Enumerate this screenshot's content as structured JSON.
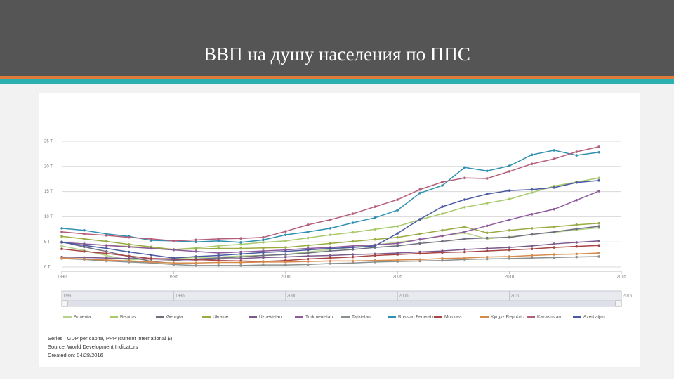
{
  "title": "ВВП на душу населения по ППС",
  "chart_data": {
    "type": "line",
    "x": [
      1990,
      1991,
      1992,
      1993,
      1994,
      1995,
      1996,
      1997,
      1998,
      1999,
      2000,
      2001,
      2002,
      2003,
      2004,
      2005,
      2006,
      2007,
      2008,
      2009,
      2010,
      2011,
      2012,
      2013,
      2014
    ],
    "xlim": [
      1990,
      2015
    ],
    "xticks": [
      1990,
      1995,
      2000,
      2005,
      2010,
      2015
    ],
    "ylim": [
      0,
      25
    ],
    "yticks": [
      {
        "value": 0,
        "label": "0 T"
      },
      {
        "value": 5,
        "label": "5 T"
      },
      {
        "value": 10,
        "label": "10 T"
      },
      {
        "value": 15,
        "label": "15 T"
      },
      {
        "value": 20,
        "label": "20 T"
      },
      {
        "value": 25,
        "label": "25 T"
      }
    ],
    "grid": true,
    "series": [
      {
        "name": "Armenia",
        "color": "#b5d38a",
        "values": [
          4.2,
          3.3,
          2.3,
          1.4,
          1.6,
          1.7,
          1.9,
          2.0,
          2.2,
          2.3,
          2.5,
          3.0,
          3.5,
          3.9,
          4.4,
          4.9,
          5.5,
          6.2,
          6.8,
          5.6,
          6.0,
          6.5,
          6.9,
          7.4,
          7.8
        ]
      },
      {
        "name": "Belarus",
        "color": "#a9c96b",
        "values": [
          4.9,
          4.6,
          4.3,
          4.1,
          3.8,
          3.5,
          3.8,
          4.2,
          4.5,
          4.9,
          5.2,
          5.8,
          6.4,
          6.9,
          7.5,
          8.1,
          9.4,
          10.6,
          11.9,
          12.7,
          13.5,
          14.8,
          16.1,
          16.9,
          17.7
        ]
      },
      {
        "name": "Georgia",
        "color": "#6f6f80",
        "values": [
          5.0,
          4.0,
          3.1,
          2.1,
          1.1,
          1.3,
          1.6,
          1.8,
          2.0,
          2.3,
          2.5,
          2.8,
          3.2,
          3.5,
          3.9,
          4.2,
          4.7,
          5.1,
          5.6,
          5.8,
          5.9,
          6.5,
          7.0,
          7.6,
          8.1
        ]
      },
      {
        "name": "Ukraine",
        "color": "#9aab42",
        "values": [
          6.1,
          5.6,
          5.1,
          4.5,
          4.0,
          3.5,
          3.6,
          3.7,
          3.7,
          3.8,
          3.9,
          4.3,
          4.7,
          5.1,
          5.5,
          5.9,
          6.6,
          7.3,
          8.0,
          6.8,
          7.3,
          7.7,
          8.0,
          8.4,
          8.7
        ]
      },
      {
        "name": "Uzbekistan",
        "color": "#7b5a8c",
        "values": [
          2.0,
          1.9,
          1.8,
          1.7,
          1.6,
          1.5,
          1.4,
          1.6,
          1.7,
          1.9,
          2.0,
          2.2,
          2.3,
          2.5,
          2.6,
          2.8,
          3.0,
          3.2,
          3.5,
          3.7,
          3.9,
          4.2,
          4.6,
          4.9,
          5.2
        ]
      },
      {
        "name": "Turkmenistan",
        "color": "#8e5a9a",
        "values": [
          4.9,
          4.6,
          4.3,
          4.0,
          3.7,
          3.4,
          3.1,
          2.8,
          3.0,
          3.2,
          3.4,
          3.7,
          3.9,
          4.2,
          4.4,
          4.7,
          5.5,
          6.2,
          7.0,
          8.2,
          9.4,
          10.5,
          11.5,
          13.3,
          15.1
        ]
      },
      {
        "name": "Tajikistan",
        "color": "#8a9090",
        "values": [
          1.7,
          1.5,
          1.2,
          1.0,
          0.8,
          0.5,
          0.3,
          0.3,
          0.3,
          0.4,
          0.4,
          0.5,
          0.7,
          0.8,
          1.0,
          1.1,
          1.2,
          1.3,
          1.5,
          1.6,
          1.7,
          1.8,
          1.9,
          2.0,
          2.1
        ]
      },
      {
        "name": "Russian Federation",
        "color": "#2f90b0",
        "values": [
          7.7,
          7.3,
          6.6,
          6.1,
          5.3,
          5.2,
          5.0,
          5.2,
          4.9,
          5.4,
          6.4,
          7.0,
          7.7,
          8.8,
          9.8,
          11.3,
          14.7,
          16.2,
          19.8,
          19.1,
          20.1,
          22.3,
          23.2,
          22.2,
          22.8
        ]
      },
      {
        "name": "Moldova",
        "color": "#a84444",
        "values": [
          3.6,
          3.1,
          2.7,
          2.2,
          1.7,
          1.6,
          1.5,
          1.3,
          1.2,
          1.1,
          1.3,
          1.6,
          1.8,
          2.0,
          2.3,
          2.5,
          2.7,
          2.9,
          3.0,
          3.2,
          3.4,
          3.6,
          3.9,
          4.1,
          4.3
        ]
      },
      {
        "name": "Kyrgyz Republic",
        "color": "#d68a4a",
        "values": [
          1.8,
          1.6,
          1.4,
          1.2,
          1.0,
          0.8,
          0.8,
          0.9,
          0.9,
          1.0,
          1.0,
          1.1,
          1.2,
          1.2,
          1.3,
          1.4,
          1.5,
          1.7,
          1.8,
          2.0,
          2.1,
          2.3,
          2.5,
          2.6,
          2.8
        ]
      },
      {
        "name": "Kazakhstan",
        "color": "#b45e7c",
        "values": [
          7.0,
          6.6,
          6.3,
          5.9,
          5.6,
          5.2,
          5.4,
          5.6,
          5.7,
          5.9,
          7.1,
          8.4,
          9.4,
          10.6,
          12.0,
          13.4,
          15.4,
          16.9,
          17.7,
          17.6,
          19.0,
          20.5,
          21.5,
          22.9,
          23.9
        ]
      },
      {
        "name": "Azerbaijan",
        "color": "#4a5aa2",
        "values": [
          4.9,
          4.3,
          3.7,
          3.0,
          2.4,
          1.8,
          2.1,
          2.3,
          2.6,
          2.9,
          3.1,
          3.4,
          3.7,
          3.9,
          4.2,
          6.7,
          9.5,
          12.0,
          13.4,
          14.5,
          15.2,
          15.4,
          15.8,
          16.8,
          17.2
        ]
      }
    ],
    "notes": [
      "Series : GDP per capita, PPP (current international $)",
      "Source: World Development Indicators",
      "Created on: 04/28/2016"
    ]
  }
}
